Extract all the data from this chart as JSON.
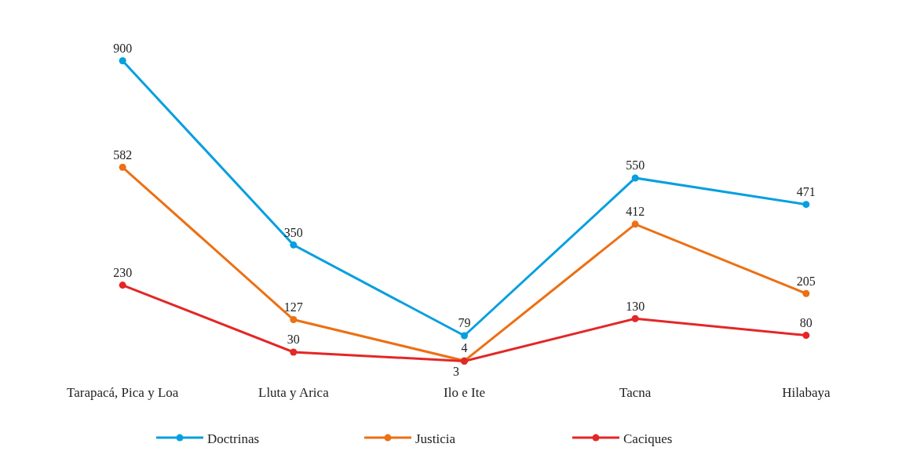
{
  "chart_data": {
    "type": "line",
    "categories": [
      "Tarapacá, Pica y Loa",
      "Lluta y Arica",
      "Ilo e Ite",
      "Tacna",
      "Hilabaya"
    ],
    "series": [
      {
        "name": "Doctrinas",
        "color": "#069fe0",
        "values": [
          900,
          350,
          79,
          550,
          471
        ]
      },
      {
        "name": "Justicia",
        "color": "#ec7014",
        "values": [
          582,
          127,
          4,
          412,
          205
        ]
      },
      {
        "name": "Caciques",
        "color": "#e32726",
        "values": [
          230,
          30,
          3,
          130,
          80
        ]
      }
    ],
    "data_labels": true,
    "marker": "circle",
    "line_style": "solid",
    "legend": "bottom"
  }
}
